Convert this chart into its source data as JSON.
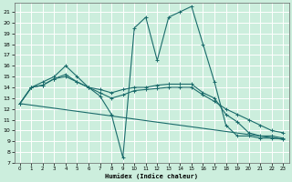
{
  "xlabel": "Humidex (Indice chaleur)",
  "bg_color": "#cceedd",
  "grid_color": "#ffffff",
  "line_color": "#1a6b6b",
  "xlim": [
    -0.5,
    23.5
  ],
  "ylim": [
    7,
    21.8
  ],
  "yticks": [
    7,
    8,
    9,
    10,
    11,
    12,
    13,
    14,
    15,
    16,
    17,
    18,
    19,
    20,
    21
  ],
  "xticks": [
    0,
    1,
    2,
    3,
    4,
    5,
    6,
    7,
    8,
    9,
    10,
    11,
    12,
    13,
    14,
    15,
    16,
    17,
    18,
    19,
    20,
    21,
    22,
    23
  ],
  "lines": [
    {
      "x": [
        0,
        1,
        2,
        3,
        4,
        5,
        6,
        7,
        8,
        9,
        10,
        11,
        12,
        13,
        14,
        15,
        16,
        17,
        18,
        19,
        20,
        21,
        22,
        23
      ],
      "y": [
        12.5,
        14.0,
        14.5,
        15.0,
        16.0,
        15.0,
        14.0,
        13.2,
        11.5,
        7.5,
        19.5,
        20.5,
        16.5,
        20.5,
        21.0,
        21.5,
        18.0,
        14.5,
        10.5,
        9.5,
        9.5,
        9.3,
        9.3,
        9.2
      ]
    },
    {
      "x": [
        0,
        1,
        2,
        3,
        4,
        5,
        6,
        7,
        8,
        9,
        10,
        11,
        12,
        13,
        14,
        15,
        16,
        17,
        18,
        19,
        20,
        21,
        22,
        23
      ],
      "y": [
        12.5,
        14.0,
        14.2,
        14.8,
        15.2,
        14.5,
        14.0,
        13.8,
        13.5,
        13.8,
        14.0,
        14.0,
        14.2,
        14.3,
        14.3,
        14.3,
        13.5,
        13.0,
        11.5,
        10.8,
        9.8,
        9.5,
        9.5,
        9.3
      ]
    },
    {
      "x": [
        0,
        23
      ],
      "y": [
        12.5,
        9.2
      ]
    },
    {
      "x": [
        0,
        1,
        2,
        3,
        4,
        5,
        6,
        7,
        8,
        9,
        10,
        11,
        12,
        13,
        14,
        15,
        16,
        17,
        18,
        19,
        20,
        21,
        22,
        23
      ],
      "y": [
        12.5,
        14.0,
        14.2,
        14.8,
        15.0,
        14.5,
        14.0,
        13.5,
        13.0,
        13.3,
        13.7,
        13.8,
        13.9,
        14.0,
        14.0,
        14.0,
        13.3,
        12.7,
        12.0,
        11.5,
        11.0,
        10.5,
        10.0,
        9.8
      ]
    }
  ]
}
